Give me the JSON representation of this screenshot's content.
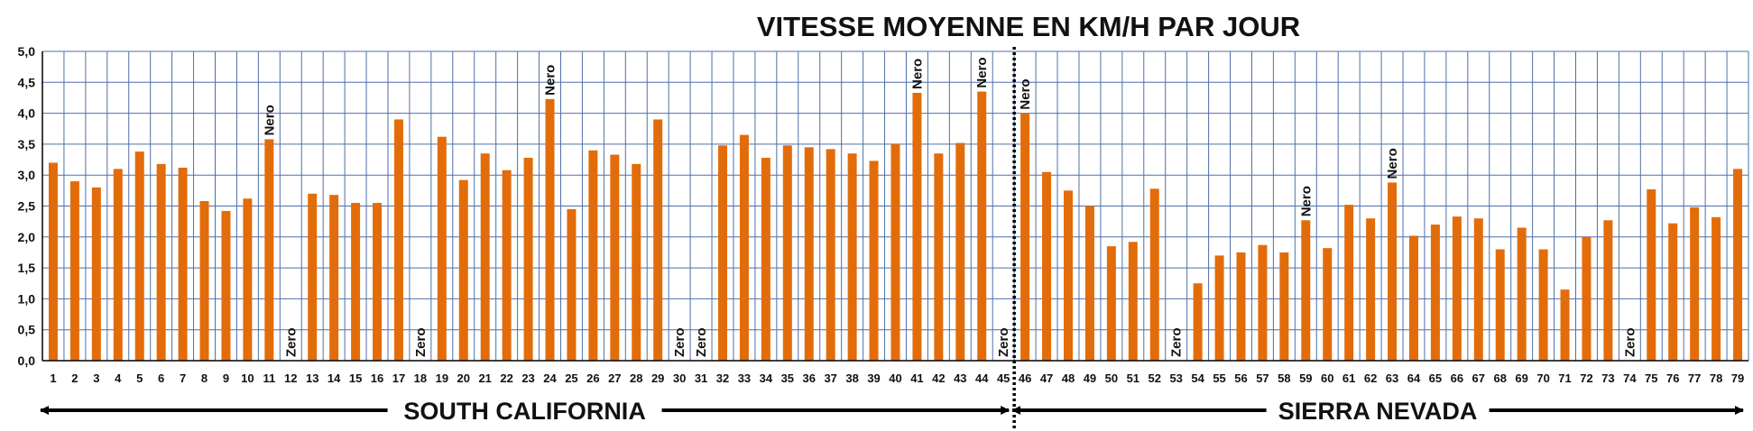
{
  "chart_data": {
    "type": "bar",
    "title": "VITESSE MOYENNE EN KM/H PAR JOUR",
    "xlabel": "",
    "ylabel": "",
    "ylim": [
      0,
      5
    ],
    "y_ticks": [
      "0,0",
      "0,5",
      "1,0",
      "1,5",
      "2,0",
      "2,5",
      "3,0",
      "3,5",
      "4,0",
      "4,5",
      "5,0"
    ],
    "grid": true,
    "bar_color": "#E36C0A",
    "grid_color": "#4F6FA8",
    "categories": [
      "1",
      "2",
      "3",
      "4",
      "5",
      "6",
      "7",
      "8",
      "9",
      "10",
      "11",
      "12",
      "13",
      "14",
      "15",
      "16",
      "17",
      "18",
      "19",
      "20",
      "21",
      "22",
      "23",
      "24",
      "25",
      "26",
      "27",
      "28",
      "29",
      "30",
      "31",
      "32",
      "33",
      "34",
      "35",
      "36",
      "37",
      "38",
      "39",
      "40",
      "41",
      "42",
      "43",
      "44",
      "45",
      "46",
      "47",
      "48",
      "49",
      "50",
      "51",
      "52",
      "53",
      "54",
      "55",
      "56",
      "57",
      "58",
      "59",
      "60",
      "61",
      "62",
      "63",
      "64",
      "65",
      "66",
      "67",
      "68",
      "69",
      "70",
      "71",
      "72",
      "73",
      "74",
      "75",
      "76",
      "77",
      "78",
      "79"
    ],
    "values": [
      3.2,
      2.9,
      2.8,
      3.1,
      3.38,
      3.18,
      3.12,
      2.58,
      2.42,
      2.62,
      3.58,
      0,
      2.7,
      2.68,
      2.55,
      2.55,
      3.9,
      0,
      3.62,
      2.92,
      3.35,
      3.08,
      3.28,
      4.23,
      2.45,
      3.4,
      3.33,
      3.18,
      3.9,
      0,
      0,
      3.48,
      3.65,
      3.28,
      3.48,
      3.45,
      3.42,
      3.35,
      3.23,
      3.5,
      4.33,
      3.35,
      3.52,
      4.35,
      0,
      4.0,
      3.05,
      2.75,
      2.5,
      1.85,
      1.92,
      2.78,
      0,
      1.25,
      1.7,
      1.75,
      1.87,
      1.75,
      2.27,
      1.82,
      2.52,
      2.3,
      2.88,
      2.02,
      2.2,
      2.33,
      2.3,
      1.8,
      2.15,
      1.8,
      1.15,
      2.0,
      2.27,
      0,
      2.77,
      2.22,
      2.48,
      2.32,
      3.1
    ],
    "annotations": [
      {
        "day": "11",
        "text": "Nero"
      },
      {
        "day": "12",
        "text": "Zero"
      },
      {
        "day": "18",
        "text": "Zero"
      },
      {
        "day": "24",
        "text": "Nero"
      },
      {
        "day": "30",
        "text": "Zero"
      },
      {
        "day": "31",
        "text": "Zero"
      },
      {
        "day": "41",
        "text": "Nero"
      },
      {
        "day": "44",
        "text": "Nero"
      },
      {
        "day": "45",
        "text": "Zero"
      },
      {
        "day": "46",
        "text": "Nero"
      },
      {
        "day": "53",
        "text": "Zero"
      },
      {
        "day": "59",
        "text": "Nero"
      },
      {
        "day": "63",
        "text": "Nero"
      },
      {
        "day": "74",
        "text": "Zero"
      }
    ],
    "regions": [
      {
        "label": "SOUTH CALIFORNIA",
        "from": "1",
        "to": "45"
      },
      {
        "label": "SIERRA NEVADA",
        "from": "46",
        "to": "79"
      }
    ],
    "divider_between": [
      "45",
      "46"
    ]
  }
}
